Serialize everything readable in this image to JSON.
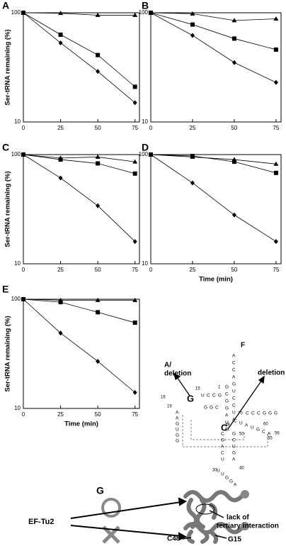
{
  "chart_data": [
    {
      "type": "line",
      "panel_label": "A",
      "ylabel": "Ser-tRNA remaining (%)",
      "x": [
        0,
        25,
        50,
        75
      ],
      "xlim": [
        0,
        78
      ],
      "xticks": [
        0,
        25,
        50,
        75
      ],
      "ylim": [
        10,
        100
      ],
      "yticks": [
        10,
        100
      ],
      "log_y": true,
      "series": [
        {
          "marker": "triangle",
          "color": "#000000",
          "values": [
            100,
            99,
            95,
            95
          ]
        },
        {
          "marker": "square",
          "color": "#000000",
          "values": [
            100,
            63,
            41,
            21
          ]
        },
        {
          "marker": "diamond",
          "color": "#000000",
          "values": [
            100,
            53,
            29,
            15
          ]
        }
      ]
    },
    {
      "type": "line",
      "panel_label": "B",
      "x": [
        0,
        25,
        50,
        75
      ],
      "xlim": [
        0,
        78
      ],
      "xticks": [
        0,
        25,
        50,
        75
      ],
      "ylim": [
        10,
        100
      ],
      "yticks": [
        10,
        100
      ],
      "log_y": true,
      "series": [
        {
          "marker": "triangle",
          "color": "#000000",
          "values": [
            100,
            98,
            85,
            88
          ]
        },
        {
          "marker": "square",
          "color": "#000000",
          "values": [
            100,
            78,
            58,
            46
          ]
        },
        {
          "marker": "diamond",
          "color": "#000000",
          "values": [
            100,
            62,
            35,
            23
          ]
        }
      ]
    },
    {
      "type": "line",
      "panel_label": "C",
      "ylabel": "Ser-tRNA remaining (%)",
      "x": [
        0,
        25,
        50,
        75
      ],
      "xlim": [
        0,
        78
      ],
      "xticks": [
        0,
        25,
        50,
        75
      ],
      "ylim": [
        10,
        100
      ],
      "yticks": [
        10,
        100
      ],
      "log_y": true,
      "series": [
        {
          "marker": "triangle",
          "color": "#000000",
          "values": [
            100,
            93,
            95,
            86
          ]
        },
        {
          "marker": "square",
          "color": "#000000",
          "values": [
            100,
            90,
            83,
            67
          ]
        },
        {
          "marker": "diamond",
          "color": "#000000",
          "values": [
            100,
            61,
            34,
            16
          ]
        }
      ]
    },
    {
      "type": "line",
      "panel_label": "D",
      "xlabel": "Time (min)",
      "x": [
        0,
        25,
        50,
        75
      ],
      "xlim": [
        0,
        78
      ],
      "xticks": [
        0,
        25,
        50,
        75
      ],
      "ylim": [
        10,
        100
      ],
      "yticks": [
        10,
        100
      ],
      "log_y": true,
      "series": [
        {
          "marker": "triangle",
          "color": "#000000",
          "values": [
            100,
            95,
            90,
            82
          ]
        },
        {
          "marker": "square",
          "color": "#000000",
          "values": [
            100,
            97,
            86,
            68
          ]
        },
        {
          "marker": "diamond",
          "color": "#000000",
          "values": [
            100,
            55,
            28,
            16
          ]
        }
      ]
    },
    {
      "type": "line",
      "panel_label": "E",
      "ylabel": "Ser-tRNA remaining (%)",
      "xlabel": "Time (min)",
      "x": [
        0,
        25,
        50,
        75
      ],
      "xlim": [
        0,
        78
      ],
      "xticks": [
        0,
        25,
        50,
        75
      ],
      "ylim": [
        10,
        100
      ],
      "yticks": [
        10,
        100
      ],
      "log_y": true,
      "series": [
        {
          "marker": "triangle",
          "color": "#000000",
          "values": [
            100,
            98,
            98,
            98
          ]
        },
        {
          "marker": "square",
          "color": "#000000",
          "values": [
            100,
            94,
            76,
            61
          ]
        },
        {
          "marker": "diamond",
          "color": "#000000",
          "values": [
            100,
            49,
            27,
            14
          ]
        }
      ]
    }
  ],
  "panel_f": {
    "label": "F",
    "left_note": "A/",
    "left_note_2": "deletion",
    "right_note": "deletion",
    "key_bases": [
      "G",
      "C"
    ],
    "sequences": [
      "ACCAGUCCUA",
      "GCGGAUG",
      "UCCG",
      "GGC",
      "AAGUGG",
      "CCCGGG",
      "CUAUGCA",
      "CGACU",
      "GCUGA",
      "UUGGA"
    ],
    "numbers": [
      "1",
      "15",
      "16",
      "19",
      "30",
      "40",
      "48",
      "50",
      "55",
      "56",
      "60",
      "70"
    ]
  },
  "panel_g": {
    "label": "G",
    "protein": "EF-Tu2",
    "note_1": "lack of",
    "note_2": "tertiary interaction",
    "site_1": "C48",
    "site_2": "G15"
  }
}
